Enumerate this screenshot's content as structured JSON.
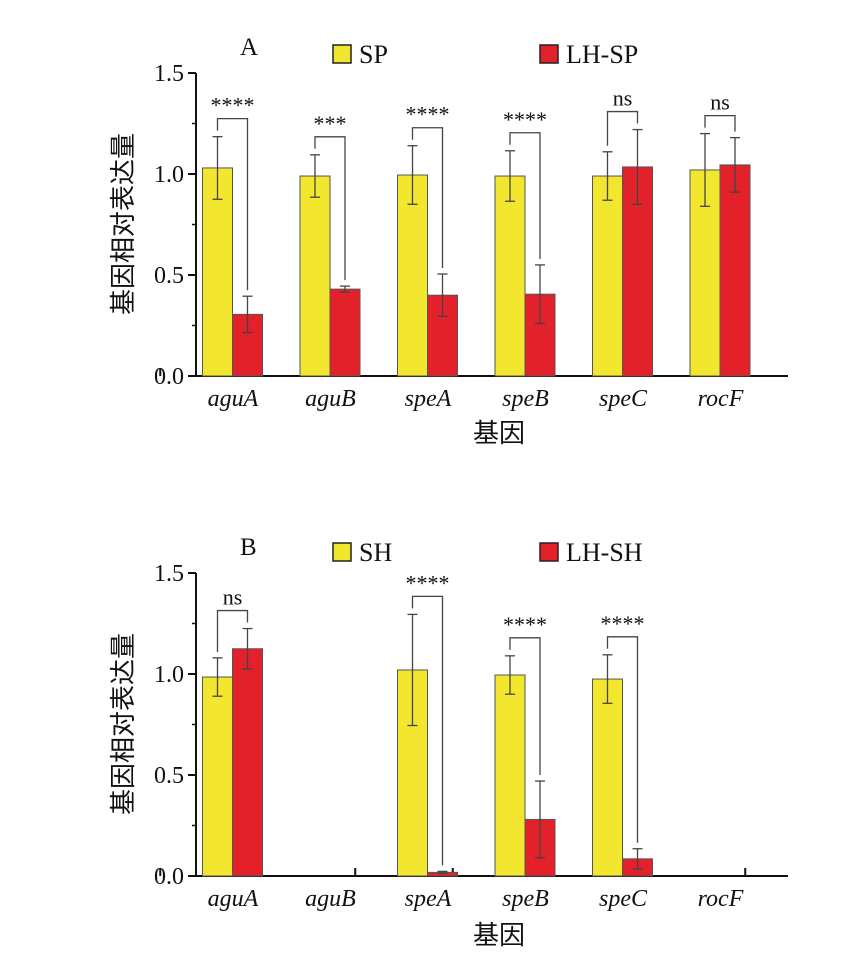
{
  "chart_data": [
    {
      "type": "bar",
      "panel_label": "A",
      "categories": [
        "aguA",
        "aguB",
        "speA",
        "speB",
        "speC",
        "rocF"
      ],
      "series": [
        {
          "name": "SP",
          "color": "#f2e72e",
          "values": [
            1.03,
            0.99,
            0.995,
            0.99,
            0.99,
            1.02
          ],
          "errors": [
            0.155,
            0.105,
            0.145,
            0.125,
            0.12,
            0.18
          ]
        },
        {
          "name": "LH-SP",
          "color": "#e3212a",
          "values": [
            0.305,
            0.43,
            0.4,
            0.405,
            1.035,
            1.045
          ],
          "errors": [
            0.09,
            0.015,
            0.105,
            0.145,
            0.185,
            0.135
          ]
        }
      ],
      "significance": [
        "****",
        "***",
        "****",
        "****",
        "ns",
        "ns"
      ],
      "xlabel": "基因",
      "ylabel": "基因相对表达量",
      "ylim": [
        0,
        1.5
      ],
      "yticks": [
        "0.0",
        "0.5",
        "1.0",
        "1.5"
      ],
      "legend_position": "top",
      "grid": false
    },
    {
      "type": "bar",
      "panel_label": "B",
      "categories": [
        "aguA",
        "aguB",
        "speA",
        "speB",
        "speC",
        "rocF"
      ],
      "series": [
        {
          "name": "SH",
          "color": "#f2e72e",
          "values": [
            0.985,
            null,
            1.02,
            0.995,
            0.975,
            null
          ],
          "errors": [
            0.095,
            null,
            0.275,
            0.095,
            0.12,
            null
          ]
        },
        {
          "name": "LH-SH",
          "color": "#e3212a",
          "values": [
            1.125,
            null,
            0.018,
            0.28,
            0.085,
            null
          ],
          "errors": [
            0.1,
            null,
            0.005,
            0.19,
            0.05,
            null
          ]
        }
      ],
      "significance": [
        "ns",
        "",
        "****",
        "****",
        "****",
        ""
      ],
      "xlabel": "基因",
      "ylabel": "基因相对表达量",
      "ylim": [
        0,
        1.5
      ],
      "yticks": [
        "0.0",
        "0.5",
        "1.0",
        "1.5"
      ],
      "legend_position": "top",
      "grid": false
    }
  ]
}
